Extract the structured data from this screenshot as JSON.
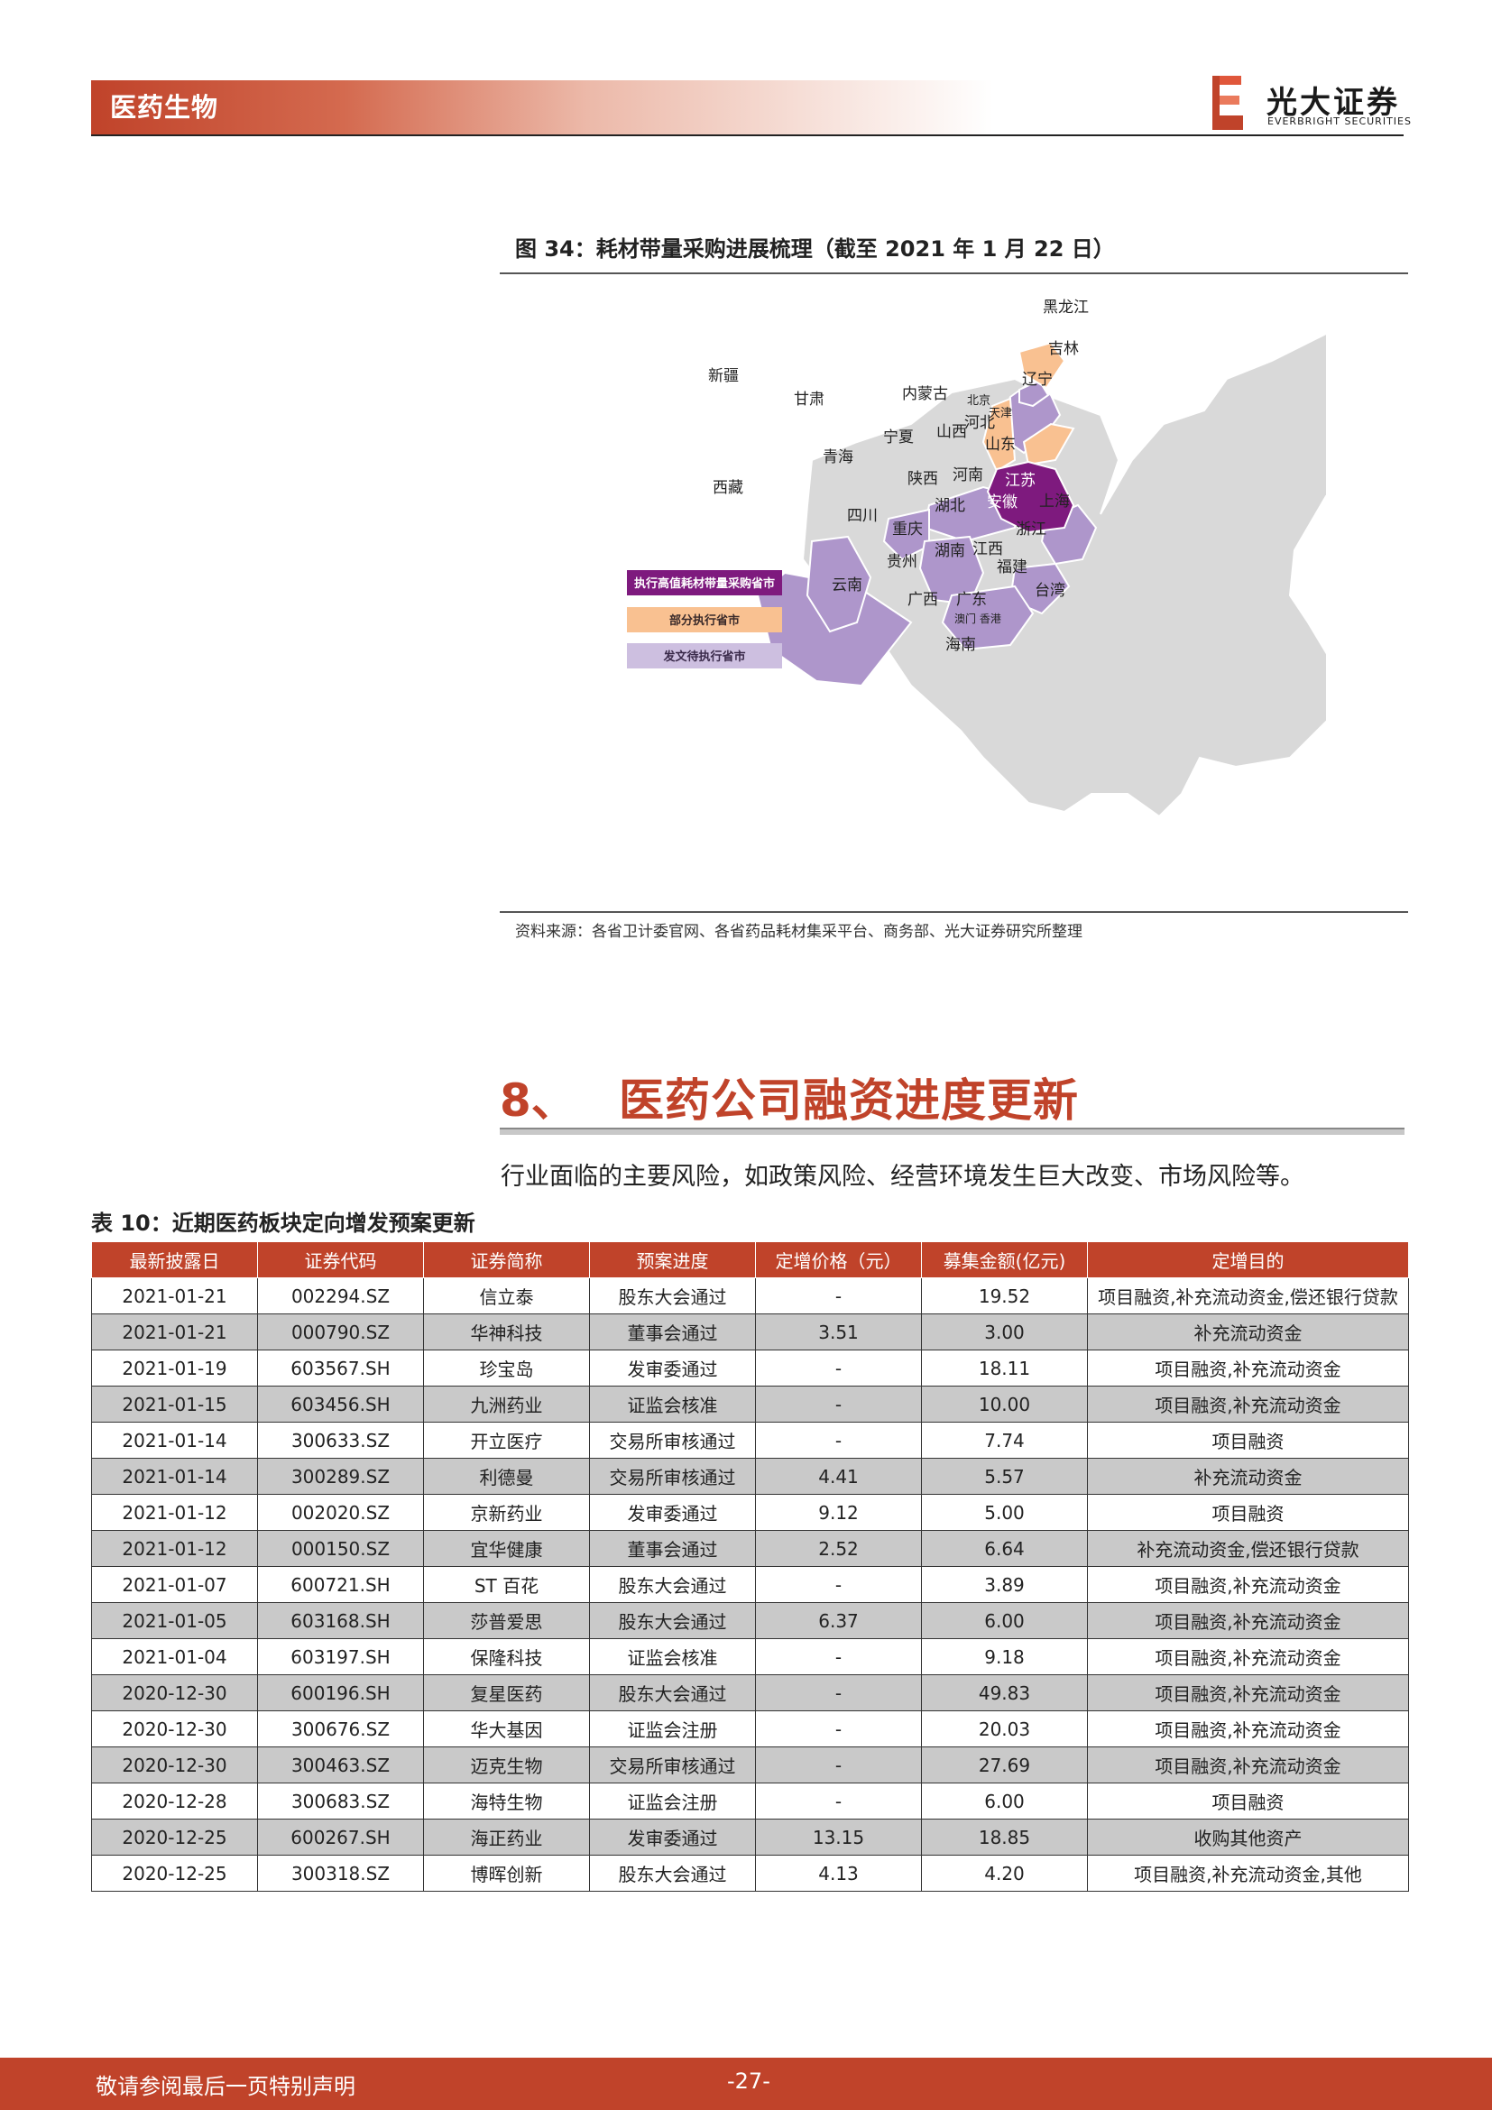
{
  "header": {
    "section": "医药生物",
    "logo_cn": "光大证券",
    "logo_en": "EVERBRIGHT SECURITIES",
    "accent_color": "#c0432a"
  },
  "figure": {
    "title": "图 34：耗材带量采购进展梳理（截至 2021 年 1 月 22 日）",
    "source": "资料来源：各省卫计委官网、各省药品耗材集采平台、商务部、光大证券研究所整理",
    "legend": [
      {
        "label": "执行高值耗材带量采购省市",
        "color": "#7e1a7e"
      },
      {
        "label": "部分执行省市",
        "color": "#f9c191"
      },
      {
        "label": "发文待执行省市",
        "color": "#cdbfe0"
      }
    ],
    "map_colors": {
      "high": "#7e1a7e",
      "partial": "#f9c191",
      "pending": "#ae96cb",
      "none": "#d9d9d9"
    },
    "provinces": {
      "heilongjiang": "黑龙江",
      "jilin": "吉林",
      "liaoning": "辽宁",
      "xinjiang": "新疆",
      "gansu": "甘肃",
      "neimenggu": "内蒙古",
      "beijing": "北京",
      "tianjin": "天津",
      "hebei": "河北",
      "shanxi": "山西",
      "shandong": "山东",
      "ningxia": "宁夏",
      "qinghai": "青海",
      "shaanxi": "陕西",
      "henan": "河南",
      "jiangsu": "江苏",
      "xizang": "西藏",
      "anhui": "安徽",
      "shanghai": "上海",
      "hubei": "湖北",
      "sichuan": "四川",
      "chongqing": "重庆",
      "zhejiang": "浙江",
      "hunan": "湖南",
      "jiangxi": "江西",
      "guizhou": "贵州",
      "yunnan": "云南",
      "fujian": "福建",
      "taiwan": "台湾",
      "guangxi": "广西",
      "guangdong": "广东",
      "aomen_xianggang": "澳门 香港",
      "hainan": "海南"
    }
  },
  "section": {
    "number": "8、",
    "title": "医药公司融资进度更新",
    "risk_text": "行业面临的主要风险，如政策风险、经营环境发生巨大改变、市场风险等。"
  },
  "table": {
    "title": "表 10：近期医药板块定向增发预案更新",
    "header_color": "#c0432a",
    "columns": [
      "最新披露日",
      "证券代码",
      "证券简称",
      "预案进度",
      "定增价格（元）",
      "募集金额(亿元)",
      "定增目的"
    ],
    "rows": [
      [
        "2021-01-21",
        "002294.SZ",
        "信立泰",
        "股东大会通过",
        "-",
        "19.52",
        "项目融资,补充流动资金,偿还银行贷款"
      ],
      [
        "2021-01-21",
        "000790.SZ",
        "华神科技",
        "董事会通过",
        "3.51",
        "3.00",
        "补充流动资金"
      ],
      [
        "2021-01-19",
        "603567.SH",
        "珍宝岛",
        "发审委通过",
        "-",
        "18.11",
        "项目融资,补充流动资金"
      ],
      [
        "2021-01-15",
        "603456.SH",
        "九洲药业",
        "证监会核准",
        "-",
        "10.00",
        "项目融资,补充流动资金"
      ],
      [
        "2021-01-14",
        "300633.SZ",
        "开立医疗",
        "交易所审核通过",
        "-",
        "7.74",
        "项目融资"
      ],
      [
        "2021-01-14",
        "300289.SZ",
        "利德曼",
        "交易所审核通过",
        "4.41",
        "5.57",
        "补充流动资金"
      ],
      [
        "2021-01-12",
        "002020.SZ",
        "京新药业",
        "发审委通过",
        "9.12",
        "5.00",
        "项目融资"
      ],
      [
        "2021-01-12",
        "000150.SZ",
        "宜华健康",
        "董事会通过",
        "2.52",
        "6.64",
        "补充流动资金,偿还银行贷款"
      ],
      [
        "2021-01-07",
        "600721.SH",
        "ST 百花",
        "股东大会通过",
        "-",
        "3.89",
        "项目融资,补充流动资金"
      ],
      [
        "2021-01-05",
        "603168.SH",
        "莎普爱思",
        "股东大会通过",
        "6.37",
        "6.00",
        "项目融资,补充流动资金"
      ],
      [
        "2021-01-04",
        "603197.SH",
        "保隆科技",
        "证监会核准",
        "-",
        "9.18",
        "项目融资,补充流动资金"
      ],
      [
        "2020-12-30",
        "600196.SH",
        "复星医药",
        "股东大会通过",
        "-",
        "49.83",
        "项目融资,补充流动资金"
      ],
      [
        "2020-12-30",
        "300676.SZ",
        "华大基因",
        "证监会注册",
        "-",
        "20.03",
        "项目融资,补充流动资金"
      ],
      [
        "2020-12-30",
        "300463.SZ",
        "迈克生物",
        "交易所审核通过",
        "-",
        "27.69",
        "项目融资,补充流动资金"
      ],
      [
        "2020-12-28",
        "300683.SZ",
        "海特生物",
        "证监会注册",
        "-",
        "6.00",
        "项目融资"
      ],
      [
        "2020-12-25",
        "600267.SH",
        "海正药业",
        "发审委通过",
        "13.15",
        "18.85",
        "收购其他资产"
      ],
      [
        "2020-12-25",
        "300318.SZ",
        "博晖创新",
        "股东大会通过",
        "4.13",
        "4.20",
        "项目融资,补充流动资金,其他"
      ]
    ]
  },
  "footer": {
    "note": "敬请参阅最后一页特别声明",
    "page": "-27-"
  }
}
